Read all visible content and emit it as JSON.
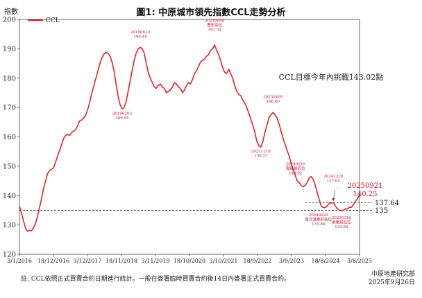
{
  "chart_data": {
    "type": "line",
    "title": "圖1: 中原城市領先指數CCL走勢分析",
    "ylabel": "指數",
    "xlabel": "",
    "ylim": [
      120,
      200
    ],
    "yticks": [
      120,
      130,
      140,
      150,
      160,
      170,
      180,
      190,
      200
    ],
    "xtick_labels": [
      "3/1/2016",
      "18/12/2016",
      "3/12/2017",
      "18/11/2018",
      "3/11/2019",
      "18/10/2020",
      "3/10/2021",
      "18/9/2022",
      "3/9/2023",
      "18/8/2024",
      "3/8/2025"
    ],
    "xlim": [
      "2016-01-03",
      "2025-09-21"
    ],
    "legend": {
      "position": "top-left",
      "label": "CCL",
      "color": "#e8202a"
    },
    "grid": false,
    "series": [
      {
        "name": "CCL",
        "color": "#e8202a",
        "points": [
          [
            "2016-01-03",
            136.5
          ],
          [
            "2016-01-24",
            134.0
          ],
          [
            "2016-02-14",
            131.5
          ],
          [
            "2016-03-06",
            129.0
          ],
          [
            "2016-03-27",
            127.8
          ],
          [
            "2016-04-17",
            128.2
          ],
          [
            "2016-05-08",
            128.0
          ],
          [
            "2016-05-29",
            129.0
          ],
          [
            "2016-06-19",
            130.5
          ],
          [
            "2016-07-10",
            133.0
          ],
          [
            "2016-07-31",
            136.0
          ],
          [
            "2016-08-21",
            139.0
          ],
          [
            "2016-09-11",
            142.5
          ],
          [
            "2016-10-02",
            145.0
          ],
          [
            "2016-10-23",
            147.5
          ],
          [
            "2016-11-13",
            148.5
          ],
          [
            "2016-12-04",
            149.0
          ],
          [
            "2016-12-25",
            149.5
          ],
          [
            "2017-01-15",
            151.5
          ],
          [
            "2017-02-05",
            153.5
          ],
          [
            "2017-02-26",
            155.5
          ],
          [
            "2017-03-19",
            157.5
          ],
          [
            "2017-04-09",
            159.5
          ],
          [
            "2017-04-30",
            160.5
          ],
          [
            "2017-05-21",
            160.8
          ],
          [
            "2017-06-11",
            160.5
          ],
          [
            "2017-07-02",
            161.5
          ],
          [
            "2017-07-23",
            162.0
          ],
          [
            "2017-08-13",
            162.5
          ],
          [
            "2017-09-03",
            164.0
          ],
          [
            "2017-09-24",
            165.5
          ],
          [
            "2017-10-15",
            165.8
          ],
          [
            "2017-11-05",
            166.5
          ],
          [
            "2017-11-26",
            167.5
          ],
          [
            "2017-12-17",
            169.5
          ],
          [
            "2018-01-07",
            172.0
          ],
          [
            "2018-01-28",
            175.0
          ],
          [
            "2018-02-18",
            177.5
          ],
          [
            "2018-03-11",
            180.0
          ],
          [
            "2018-04-01",
            182.5
          ],
          [
            "2018-04-22",
            185.0
          ],
          [
            "2018-05-13",
            187.0
          ],
          [
            "2018-06-03",
            188.2
          ],
          [
            "2018-06-24",
            188.8
          ],
          [
            "2018-07-15",
            188.5
          ],
          [
            "2018-08-05",
            187.5
          ],
          [
            "2018-08-26",
            185.5
          ],
          [
            "2018-09-16",
            182.5
          ],
          [
            "2018-10-07",
            178.0
          ],
          [
            "2018-10-28",
            174.0
          ],
          [
            "2018-11-18",
            171.0
          ],
          [
            "2018-12-09",
            169.5
          ],
          [
            "2018-12-30",
            170.0
          ],
          [
            "2019-01-20",
            172.0
          ],
          [
            "2019-02-10",
            175.5
          ],
          [
            "2019-03-03",
            179.0
          ],
          [
            "2019-03-24",
            182.5
          ],
          [
            "2019-04-14",
            186.0
          ],
          [
            "2019-05-05",
            188.5
          ],
          [
            "2019-05-26",
            190.0
          ],
          [
            "2019-06-16",
            190.5
          ],
          [
            "2019-07-07",
            190.0
          ],
          [
            "2019-07-28",
            188.5
          ],
          [
            "2019-08-18",
            185.0
          ],
          [
            "2019-09-08",
            182.0
          ],
          [
            "2019-09-29",
            180.0
          ],
          [
            "2019-10-20",
            178.5
          ],
          [
            "2019-11-10",
            177.0
          ],
          [
            "2019-12-01",
            176.5
          ],
          [
            "2019-12-22",
            177.5
          ],
          [
            "2020-01-12",
            178.0
          ],
          [
            "2020-02-02",
            177.0
          ],
          [
            "2020-02-23",
            176.5
          ],
          [
            "2020-03-15",
            175.0
          ],
          [
            "2020-04-05",
            175.5
          ],
          [
            "2020-04-26",
            176.0
          ],
          [
            "2020-05-17",
            177.0
          ],
          [
            "2020-06-07",
            178.5
          ],
          [
            "2020-06-28",
            178.0
          ],
          [
            "2020-07-19",
            177.0
          ],
          [
            "2020-08-09",
            176.5
          ],
          [
            "2020-08-30",
            175.0
          ],
          [
            "2020-09-20",
            176.0
          ],
          [
            "2020-10-11",
            177.5
          ],
          [
            "2020-11-01",
            178.5
          ],
          [
            "2020-11-22",
            178.0
          ],
          [
            "2020-12-13",
            179.5
          ],
          [
            "2021-01-03",
            181.5
          ],
          [
            "2021-01-24",
            182.5
          ],
          [
            "2021-02-14",
            184.0
          ],
          [
            "2021-03-07",
            185.5
          ],
          [
            "2021-03-28",
            186.0
          ],
          [
            "2021-04-18",
            186.5
          ],
          [
            "2021-05-09",
            187.5
          ],
          [
            "2021-05-30",
            188.0
          ],
          [
            "2021-06-20",
            189.5
          ],
          [
            "2021-07-11",
            190.0
          ],
          [
            "2021-08-01",
            191.3
          ],
          [
            "2021-08-22",
            189.5
          ],
          [
            "2021-09-12",
            188.0
          ],
          [
            "2021-10-03",
            186.0
          ],
          [
            "2021-10-24",
            183.5
          ],
          [
            "2021-11-14",
            182.0
          ],
          [
            "2021-12-05",
            181.5
          ],
          [
            "2021-12-26",
            183.0
          ],
          [
            "2022-01-16",
            181.5
          ],
          [
            "2022-02-06",
            180.0
          ],
          [
            "2022-02-27",
            177.5
          ],
          [
            "2022-03-20",
            175.5
          ],
          [
            "2022-04-10",
            174.5
          ],
          [
            "2022-05-01",
            174.0
          ],
          [
            "2022-05-22",
            172.5
          ],
          [
            "2022-06-12",
            171.5
          ],
          [
            "2022-07-03",
            170.0
          ],
          [
            "2022-07-24",
            168.0
          ],
          [
            "2022-08-14",
            166.0
          ],
          [
            "2022-09-04",
            164.0
          ],
          [
            "2022-09-25",
            161.5
          ],
          [
            "2022-10-16",
            158.5
          ],
          [
            "2022-11-06",
            157.0
          ],
          [
            "2022-11-27",
            156.5
          ],
          [
            "2022-12-18",
            158.5
          ],
          [
            "2023-01-08",
            161.5
          ],
          [
            "2023-01-29",
            164.0
          ],
          [
            "2023-02-19",
            166.5
          ],
          [
            "2023-03-12",
            167.5
          ],
          [
            "2023-04-02",
            168.3
          ],
          [
            "2023-04-23",
            167.5
          ],
          [
            "2023-05-14",
            166.5
          ],
          [
            "2023-06-04",
            164.5
          ],
          [
            "2023-06-25",
            162.0
          ],
          [
            "2023-07-16",
            159.5
          ],
          [
            "2023-08-06",
            157.5
          ],
          [
            "2023-08-27",
            155.5
          ],
          [
            "2023-09-17",
            153.5
          ],
          [
            "2023-10-08",
            151.0
          ],
          [
            "2023-10-29",
            149.0
          ],
          [
            "2023-11-19",
            147.0
          ],
          [
            "2023-12-10",
            145.0
          ],
          [
            "2023-12-31",
            144.5
          ],
          [
            "2024-01-21",
            143.5
          ],
          [
            "2024-02-11",
            143.0
          ],
          [
            "2024-03-03",
            143.5
          ],
          [
            "2024-03-24",
            144.5
          ],
          [
            "2024-04-14",
            146.0
          ],
          [
            "2024-05-05",
            146.5
          ],
          [
            "2024-05-26",
            145.5
          ],
          [
            "2024-06-16",
            143.5
          ],
          [
            "2024-07-07",
            141.0
          ],
          [
            "2024-07-28",
            138.5
          ],
          [
            "2024-08-18",
            136.5
          ],
          [
            "2024-09-08",
            135.9
          ],
          [
            "2024-09-29",
            135.9
          ],
          [
            "2024-10-20",
            136.5
          ],
          [
            "2024-11-10",
            137.5
          ],
          [
            "2024-12-01",
            137.5
          ],
          [
            "2024-12-22",
            137.6
          ],
          [
            "2025-01-12",
            136.5
          ],
          [
            "2025-02-02",
            135.5
          ],
          [
            "2025-02-23",
            135.0
          ],
          [
            "2025-03-16",
            134.9
          ],
          [
            "2025-04-06",
            135.0
          ],
          [
            "2025-04-27",
            135.5
          ],
          [
            "2025-05-18",
            135.5
          ],
          [
            "2025-06-08",
            136.0
          ],
          [
            "2025-06-29",
            136.0
          ],
          [
            "2025-07-20",
            137.0
          ],
          [
            "2025-08-10",
            138.0
          ],
          [
            "2025-08-31",
            139.0
          ],
          [
            "2025-09-21",
            140.25
          ]
        ]
      }
    ],
    "reference_lines": [
      {
        "value": 137.64,
        "label": "137.64",
        "style": "dashed"
      },
      {
        "value": 135,
        "label": "135",
        "style": "dashed"
      }
    ],
    "annotations": [
      {
        "date": "2018-12-09",
        "value": 169.95,
        "lines": [
          "20190203",
          "169.95"
        ],
        "style": "small"
      },
      {
        "date": "2019-06-16",
        "value": 190.48,
        "lines": [
          "20190630",
          "190.48"
        ],
        "style": "small"
      },
      {
        "date": "2021-08-01",
        "value": 191.34,
        "lines": [
          "20210808",
          "歷史高位",
          "191.34"
        ],
        "style": "small"
      },
      {
        "date": "2022-11-27",
        "value": 156.57,
        "lines": [
          "20221218",
          "156.57"
        ],
        "style": "small"
      },
      {
        "date": "2023-04-02",
        "value": 168.4,
        "lines": [
          "20230409",
          "168.40"
        ],
        "style": "small"
      },
      {
        "date": "2024-03-03",
        "value": 143.02,
        "lines": [
          "20240310",
          "撤辣前低位",
          "143.02"
        ],
        "style": "small"
      },
      {
        "date": "2024-12-22",
        "value": 137.64,
        "lines": [
          "20241229",
          "137.64"
        ],
        "style": "small"
      },
      {
        "date": "2024-09-29",
        "value": 135.86,
        "lines": [
          "20240929",
          "首次減息前低位",
          "135.86"
        ],
        "style": "small"
      },
      {
        "date": "2025-03-16",
        "value": 134.89,
        "lines": [
          "20250316",
          "財案前低位",
          "134.89"
        ],
        "style": "small"
      },
      {
        "date": "2025-09-21",
        "value": 140.25,
        "lines": [
          "20250921",
          "140.25"
        ],
        "style": "big"
      }
    ],
    "target_text": "CCL目標今年內挑戰143.02點",
    "note": "註: CCL依照正式買賣合約日期進行統計。一般在簽署臨時買賣合約後14日內簽署正式買賣合約。",
    "source": [
      "中原地產研究部",
      "2025年9月26日"
    ]
  }
}
